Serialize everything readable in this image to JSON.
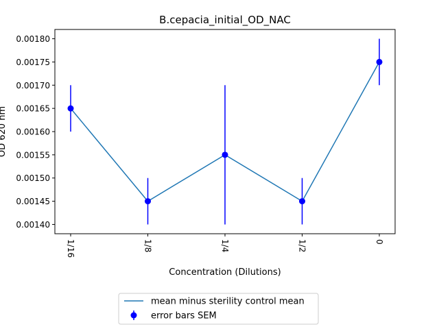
{
  "chart_data": {
    "type": "line",
    "title": "B.cepacia_initial_OD_NAC",
    "xlabel": "Concentration (Dilutions)",
    "ylabel": "OD 620 nm",
    "categories": [
      "1/16",
      "1/8",
      "1/4",
      "1/2",
      "0"
    ],
    "ylim": [
      0.00138,
      0.00182
    ],
    "yticks": [
      "0.00140",
      "0.00145",
      "0.00150",
      "0.00155",
      "0.00160",
      "0.00165",
      "0.00170",
      "0.00175",
      "0.00180"
    ],
    "grid": false,
    "legend_position": "below",
    "series": [
      {
        "name": "mean minus sterility control mean",
        "values": [
          0.00165,
          0.00145,
          0.00155,
          0.00145,
          0.00175
        ],
        "color": "#1f77b4"
      },
      {
        "name": "error bars SEM",
        "values": [
          0.00165,
          0.00145,
          0.00155,
          0.00145,
          0.00175
        ],
        "sem": [
          5e-05,
          5e-05,
          0.00015,
          5e-05,
          5e-05
        ],
        "color": "#0000ff"
      }
    ]
  }
}
